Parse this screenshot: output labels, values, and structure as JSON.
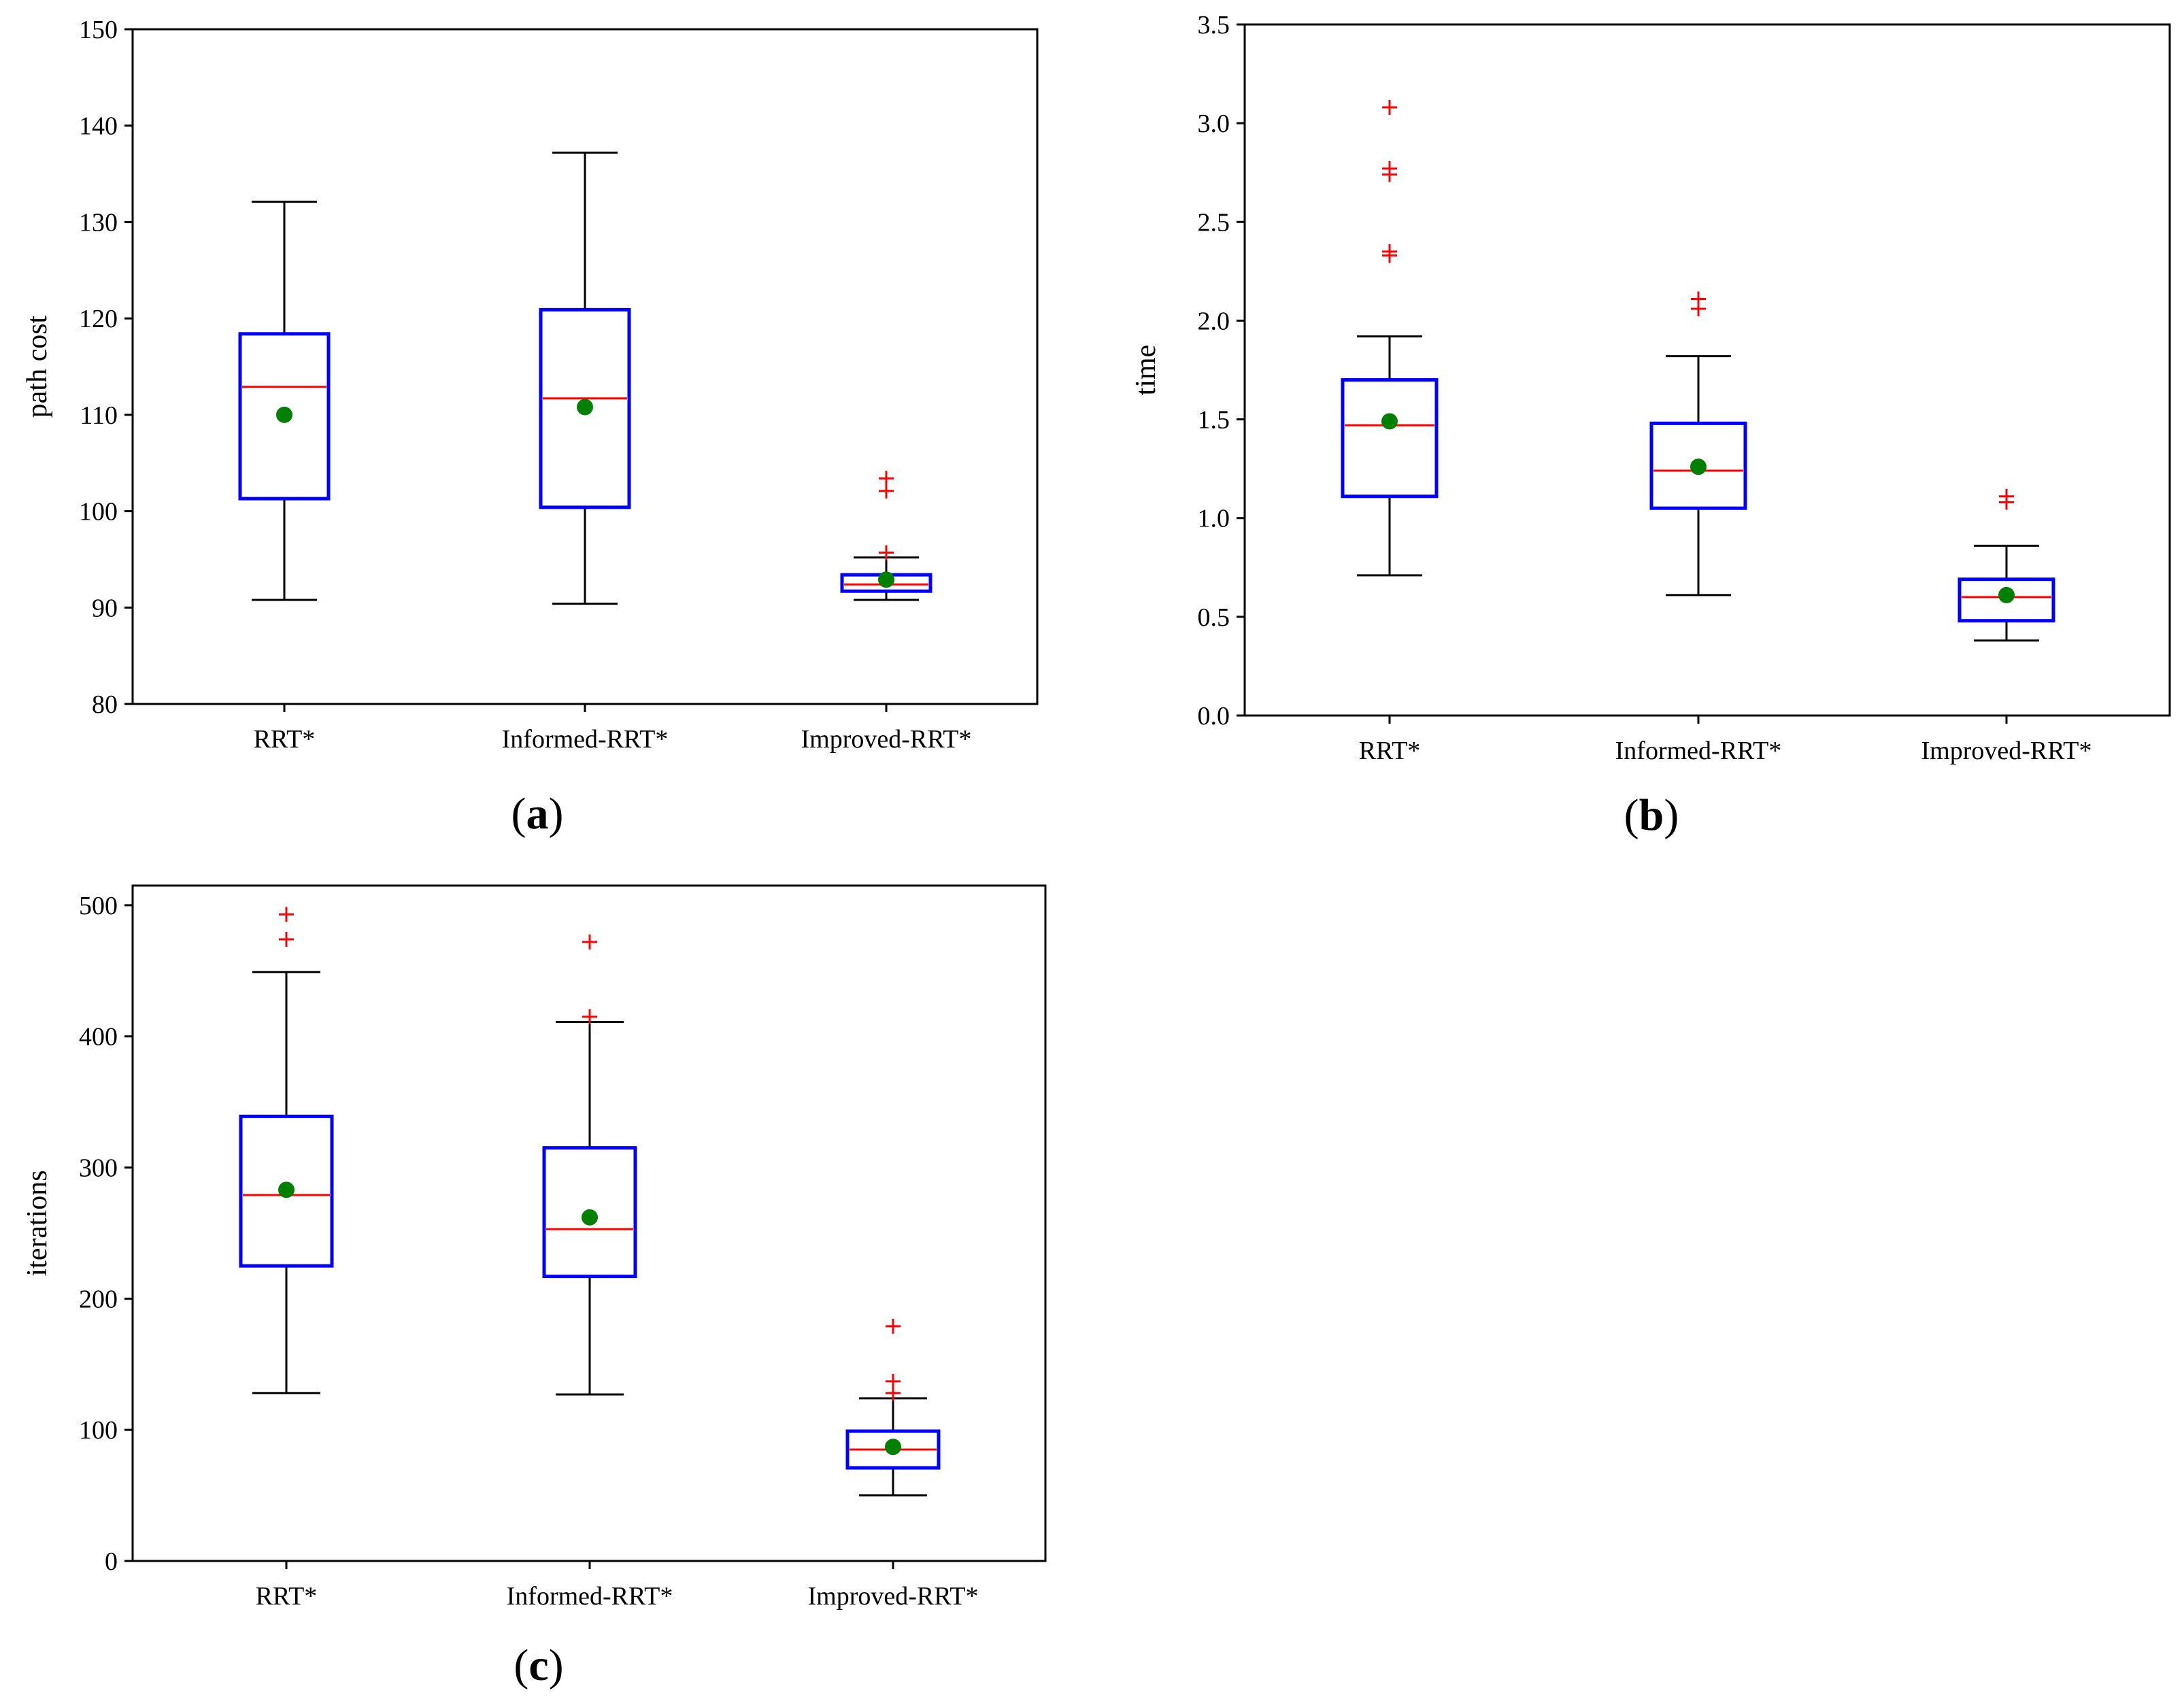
{
  "chart_data": [
    {
      "type": "box",
      "panel_label": "a",
      "title": "",
      "xlabel": "",
      "ylabel": "path cost",
      "ylim": [
        80,
        150
      ],
      "yticks": [
        80,
        90,
        100,
        110,
        120,
        130,
        140,
        150
      ],
      "ytick_labels": [
        "80",
        "90",
        "100",
        "110",
        "120",
        "130",
        "140",
        "150"
      ],
      "categories": [
        "RRT*",
        "Informed-RRT*",
        "Improved-RRT*"
      ],
      "boxes": [
        {
          "whisker_low": 90.8,
          "q1": 101.3,
          "median": 112.9,
          "q3": 118.4,
          "whisker_high": 132.1,
          "mean": 110.0,
          "outliers": []
        },
        {
          "whisker_low": 90.4,
          "q1": 100.4,
          "median": 111.7,
          "q3": 120.9,
          "whisker_high": 137.2,
          "mean": 110.8,
          "outliers": []
        },
        {
          "whisker_low": 90.8,
          "q1": 91.7,
          "median": 92.4,
          "q3": 93.4,
          "whisker_high": 95.2,
          "mean": 92.9,
          "outliers": [
            95.7,
            102.1,
            103.4
          ]
        }
      ]
    },
    {
      "type": "box",
      "panel_label": "b",
      "title": "",
      "xlabel": "",
      "ylabel": "time",
      "ylim": [
        0.0,
        3.5
      ],
      "yticks": [
        0.0,
        0.5,
        1.0,
        1.5,
        2.0,
        2.5,
        3.0,
        3.5
      ],
      "ytick_labels": [
        "0.0",
        "0.5",
        "1.0",
        "1.5",
        "2.0",
        "2.5",
        "3.0",
        "3.5"
      ],
      "categories": [
        "RRT*",
        "Informed-RRT*",
        "Improved-RRT*"
      ],
      "boxes": [
        {
          "whisker_low": 0.71,
          "q1": 1.11,
          "median": 1.47,
          "q3": 1.7,
          "whisker_high": 1.92,
          "mean": 1.49,
          "outliers": [
            2.33,
            2.35,
            2.74,
            2.77,
            3.08
          ]
        },
        {
          "whisker_low": 0.61,
          "q1": 1.05,
          "median": 1.24,
          "q3": 1.48,
          "whisker_high": 1.82,
          "mean": 1.26,
          "outliers": [
            2.06,
            2.11
          ]
        },
        {
          "whisker_low": 0.38,
          "q1": 0.48,
          "median": 0.6,
          "q3": 0.69,
          "whisker_high": 0.86,
          "mean": 0.61,
          "outliers": [
            1.08,
            1.11
          ]
        }
      ]
    },
    {
      "type": "box",
      "panel_label": "c",
      "title": "",
      "xlabel": "",
      "ylabel": "iterations",
      "ylim": [
        0,
        515
      ],
      "yticks": [
        0,
        100,
        200,
        300,
        400,
        500
      ],
      "ytick_labels": [
        "0",
        "100",
        "200",
        "300",
        "400",
        "500"
      ],
      "categories": [
        "RRT*",
        "Informed-RRT*",
        "Improved-RRT*"
      ],
      "boxes": [
        {
          "whisker_low": 128,
          "q1": 225,
          "median": 279,
          "q3": 339,
          "whisker_high": 449,
          "mean": 283,
          "outliers": [
            474,
            493
          ]
        },
        {
          "whisker_low": 127,
          "q1": 217,
          "median": 253,
          "q3": 315,
          "whisker_high": 411,
          "mean": 262,
          "outliers": [
            415,
            472
          ]
        },
        {
          "whisker_low": 50,
          "q1": 71,
          "median": 85,
          "q3": 99,
          "whisker_high": 124,
          "mean": 87,
          "outliers": [
            128,
            137,
            179
          ]
        }
      ]
    }
  ],
  "style": {
    "box_color": "#0000ff",
    "median_color": "#ff0000",
    "mean_color": "#008000",
    "outlier_color": "#ff0000",
    "whisker_color": "#000000"
  }
}
